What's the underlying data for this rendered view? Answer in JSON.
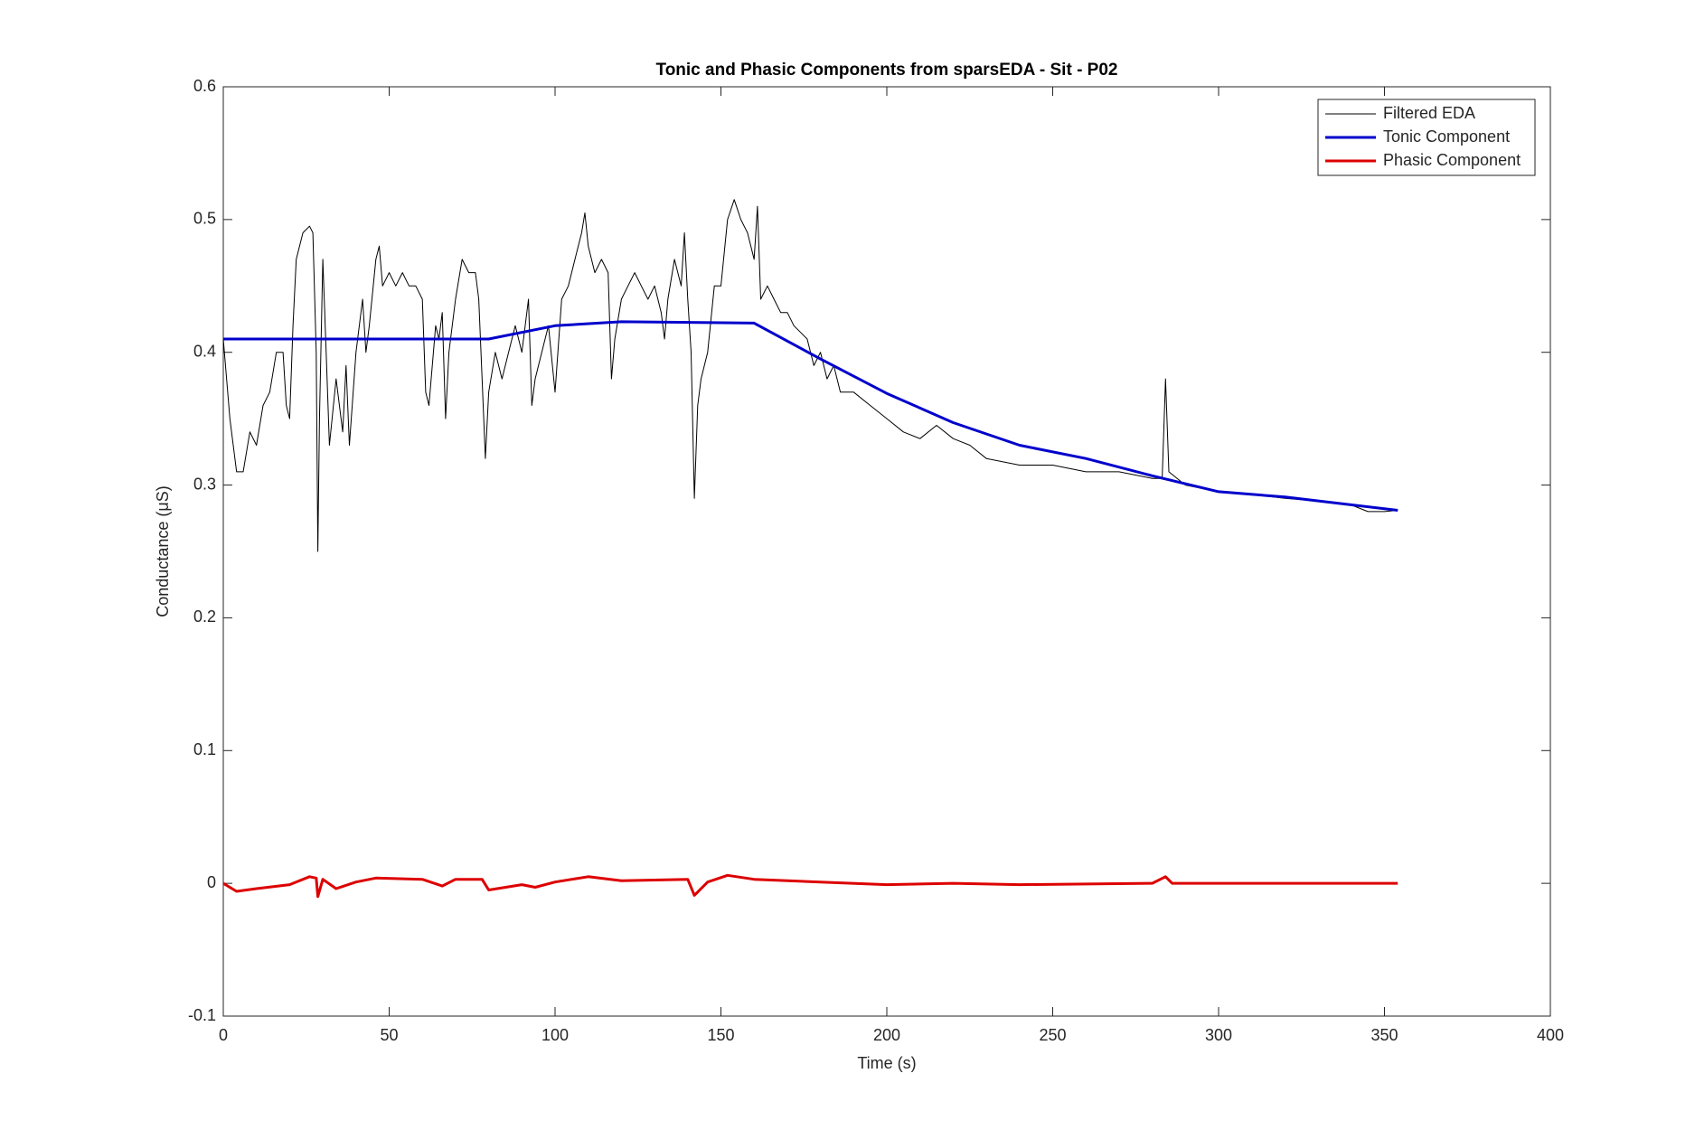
{
  "chart_data": {
    "type": "line",
    "title": "Tonic and Phasic Components from sparsEDA - Sit - P02",
    "x_label": "Time (s)",
    "y_label": "Conductance (μS)",
    "xlim": [
      0,
      400
    ],
    "xticks": [
      0,
      50,
      100,
      150,
      200,
      250,
      300,
      350,
      400
    ],
    "ylim": [
      -0.1,
      0.6
    ],
    "yticks": [
      -0.1,
      0,
      0.1,
      0.2,
      0.3,
      0.4,
      0.5,
      0.6
    ],
    "grid": false,
    "legend": "northeast",
    "series": [
      {
        "name": "Filtered EDA",
        "color": "#000000",
        "width": 1,
        "x": [
          0,
          2,
          4,
          6,
          8,
          10,
          12,
          14,
          16,
          18,
          19,
          20,
          21,
          22,
          24,
          26,
          27,
          28,
          28.5,
          29,
          30,
          31,
          32,
          34,
          36,
          37,
          38,
          40,
          42,
          43,
          44,
          46,
          47,
          48,
          50,
          52,
          54,
          56,
          58,
          60,
          61,
          62,
          64,
          65,
          66,
          67,
          68,
          70,
          72,
          74,
          76,
          77,
          78,
          79,
          80,
          82,
          84,
          86,
          88,
          90,
          92,
          93,
          94,
          96,
          98,
          100,
          102,
          104,
          106,
          108,
          109,
          110,
          112,
          114,
          116,
          117,
          118,
          120,
          122,
          124,
          126,
          128,
          130,
          132,
          133,
          134,
          136,
          138,
          139,
          140,
          141,
          142,
          143,
          144,
          146,
          148,
          150,
          152,
          154,
          156,
          158,
          160,
          161,
          162,
          164,
          166,
          168,
          170,
          172,
          174,
          176,
          178,
          180,
          182,
          184,
          186,
          190,
          195,
          200,
          205,
          210,
          215,
          220,
          225,
          230,
          240,
          250,
          260,
          270,
          280,
          283,
          284,
          285,
          290,
          300,
          310,
          320,
          330,
          340,
          345,
          350,
          354
        ],
        "values": [
          0.41,
          0.35,
          0.31,
          0.31,
          0.34,
          0.33,
          0.36,
          0.37,
          0.4,
          0.4,
          0.36,
          0.35,
          0.42,
          0.47,
          0.49,
          0.495,
          0.49,
          0.4,
          0.25,
          0.35,
          0.47,
          0.4,
          0.33,
          0.38,
          0.34,
          0.39,
          0.33,
          0.4,
          0.44,
          0.4,
          0.42,
          0.47,
          0.48,
          0.45,
          0.46,
          0.45,
          0.46,
          0.45,
          0.45,
          0.44,
          0.37,
          0.36,
          0.42,
          0.41,
          0.43,
          0.35,
          0.4,
          0.44,
          0.47,
          0.46,
          0.46,
          0.44,
          0.38,
          0.32,
          0.37,
          0.4,
          0.38,
          0.4,
          0.42,
          0.4,
          0.44,
          0.36,
          0.38,
          0.4,
          0.42,
          0.37,
          0.44,
          0.45,
          0.47,
          0.49,
          0.505,
          0.48,
          0.46,
          0.47,
          0.46,
          0.38,
          0.41,
          0.44,
          0.45,
          0.46,
          0.45,
          0.44,
          0.45,
          0.43,
          0.41,
          0.44,
          0.47,
          0.45,
          0.49,
          0.44,
          0.4,
          0.29,
          0.36,
          0.38,
          0.4,
          0.45,
          0.45,
          0.5,
          0.515,
          0.5,
          0.49,
          0.47,
          0.51,
          0.44,
          0.45,
          0.44,
          0.43,
          0.43,
          0.42,
          0.415,
          0.41,
          0.39,
          0.4,
          0.38,
          0.39,
          0.37,
          0.37,
          0.36,
          0.35,
          0.34,
          0.335,
          0.345,
          0.335,
          0.33,
          0.32,
          0.315,
          0.315,
          0.31,
          0.31,
          0.305,
          0.305,
          0.38,
          0.31,
          0.3,
          0.295,
          0.293,
          0.29,
          0.288,
          0.285,
          0.28,
          0.28,
          0.281
        ]
      },
      {
        "name": "Tonic Component",
        "color": "#0000cc",
        "width": 3,
        "x": [
          0,
          80,
          100,
          120,
          160,
          180,
          200,
          220,
          240,
          260,
          280,
          300,
          320,
          354
        ],
        "values": [
          0.41,
          0.41,
          0.42,
          0.423,
          0.422,
          0.395,
          0.369,
          0.347,
          0.33,
          0.32,
          0.307,
          0.295,
          0.291,
          0.281
        ]
      },
      {
        "name": "Phasic Component",
        "color": "#dd0000",
        "width": 3,
        "x": [
          0,
          4,
          10,
          20,
          26,
          28,
          28.5,
          30,
          34,
          40,
          46,
          60,
          66,
          70,
          78,
          80,
          90,
          94,
          100,
          110,
          120,
          140,
          142,
          146,
          152,
          160,
          180,
          200,
          220,
          240,
          280,
          284,
          286,
          354
        ],
        "values": [
          0,
          -0.006,
          -0.004,
          -0.001,
          0.005,
          0.004,
          -0.01,
          0.003,
          -0.004,
          0.001,
          0.004,
          0.003,
          -0.002,
          0.003,
          0.003,
          -0.005,
          -0.001,
          -0.003,
          0.001,
          0.005,
          0.002,
          0.003,
          -0.009,
          0.001,
          0.006,
          0.003,
          0.001,
          -0.001,
          0,
          -0.001,
          0,
          0.005,
          0,
          0
        ]
      }
    ]
  }
}
